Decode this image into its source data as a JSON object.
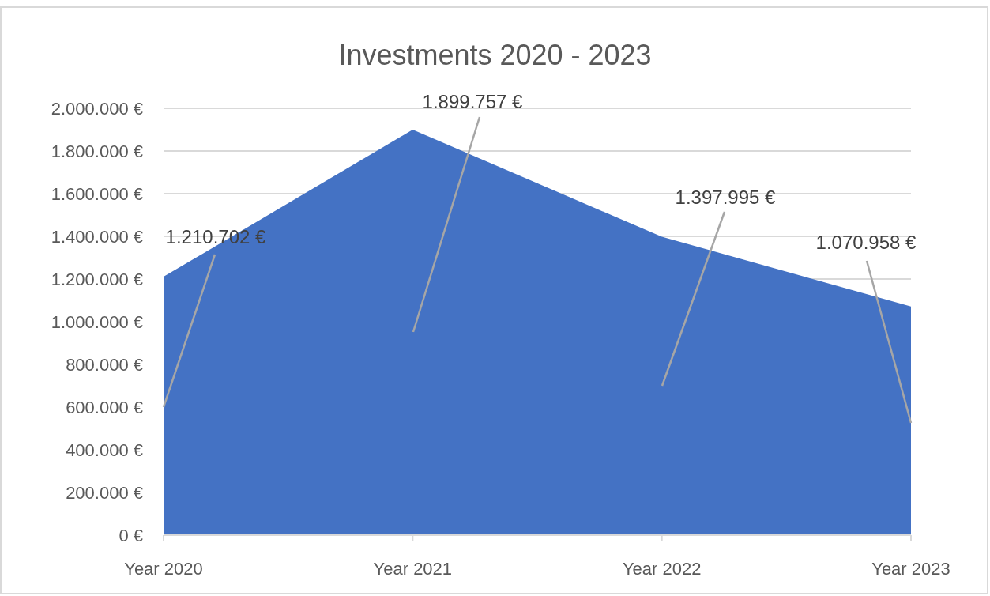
{
  "chart_data": {
    "type": "area",
    "title": "Investments 2020 - 2023",
    "categories": [
      "Year 2020",
      "Year 2021",
      "Year 2022",
      "Year 2023"
    ],
    "values": [
      1210702,
      1899757,
      1397995,
      1070958
    ],
    "value_labels": [
      "1.210.702 €",
      "1.899.757 €",
      "1.397.995 €",
      "1.070.958 €"
    ],
    "color": "#4472c4",
    "ylim": [
      0,
      2000000
    ],
    "yticks": [
      {
        "value": 0,
        "label": "0 €"
      },
      {
        "value": 200000,
        "label": "200.000 €"
      },
      {
        "value": 400000,
        "label": "400.000 €"
      },
      {
        "value": 600000,
        "label": "600.000 €"
      },
      {
        "value": 800000,
        "label": "800.000 €"
      },
      {
        "value": 1000000,
        "label": "1.000.000 €"
      },
      {
        "value": 1200000,
        "label": "1.200.000 €"
      },
      {
        "value": 1400000,
        "label": "1.400.000 €"
      },
      {
        "value": 1600000,
        "label": "1.600.000 €"
      },
      {
        "value": 1800000,
        "label": "1.800.000 €"
      },
      {
        "value": 2000000,
        "label": "2.000.000 €"
      }
    ],
    "grid": "y"
  }
}
